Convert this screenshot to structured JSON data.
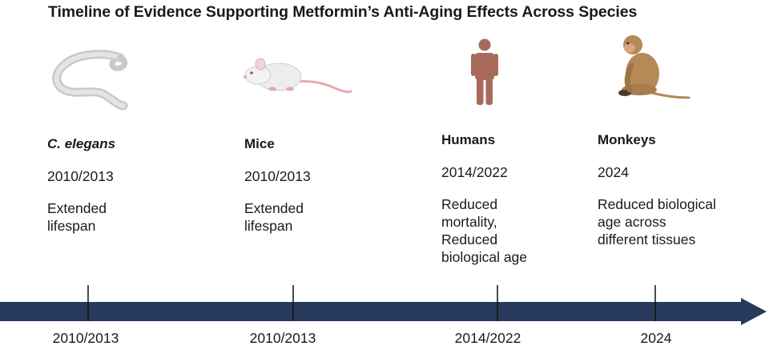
{
  "title": "Timeline of Evidence Supporting Metformin’s Anti-Aging Effects Across Species",
  "colors": {
    "axis": "#283a5b",
    "worm": "#d9d9d9",
    "mouse": "#ededed",
    "mouse_pink": "#e6a9ad",
    "human": "#a86a5b",
    "monkey": "#b58a57"
  },
  "entries": [
    {
      "species": "C. elegans",
      "italic": true,
      "year": "2010/2013",
      "effect": "Extended\nlifespan",
      "icon": "worm-icon"
    },
    {
      "species": "Mice",
      "italic": false,
      "year": "2010/2013",
      "effect": "Extended\nlifespan",
      "icon": "mouse-icon"
    },
    {
      "species": "Humans",
      "italic": false,
      "year": "2014/2022",
      "effect": "Reduced\nmortality,\nReduced\nbiological age",
      "icon": "human-icon"
    },
    {
      "species": "Monkeys",
      "italic": false,
      "year": "2024",
      "effect": "Reduced biological\nage across\ndifferent tissues",
      "icon": "monkey-icon"
    }
  ],
  "timeline_labels": [
    "2010/2013",
    "2010/2013",
    "2014/2022",
    "2024"
  ]
}
